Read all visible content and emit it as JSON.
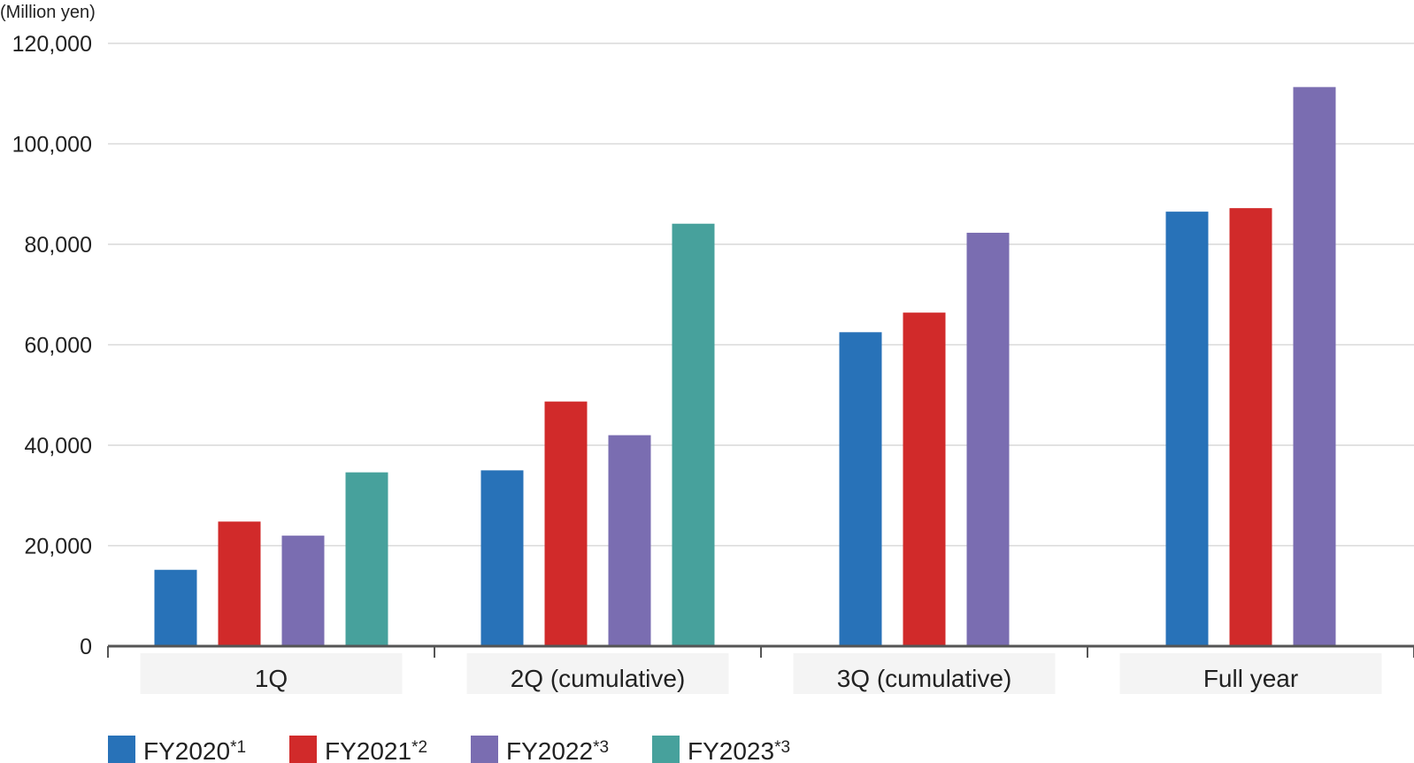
{
  "chart_data": {
    "type": "bar",
    "unit_label": "(Million yen)",
    "categories": [
      "1Q",
      "2Q (cumulative)",
      "3Q (cumulative)",
      "Full year"
    ],
    "ylim": [
      0,
      120000
    ],
    "yticks": [
      0,
      20000,
      40000,
      60000,
      80000,
      100000,
      120000
    ],
    "ytick_labels": [
      "0",
      "20,000",
      "40,000",
      "60,000",
      "80,000",
      "100,000",
      "120,000"
    ],
    "grid": true,
    "legend_position": "bottom-left",
    "series": [
      {
        "name": "FY2020",
        "note": "*1",
        "color": "#2872b8",
        "values": [
          15200,
          35000,
          62500,
          86500
        ]
      },
      {
        "name": "FY2021",
        "note": "*2",
        "color": "#d12a2a",
        "values": [
          24800,
          48700,
          66400,
          87200
        ]
      },
      {
        "name": "FY2022",
        "note": "*3",
        "color": "#7a6db1",
        "values": [
          22000,
          42000,
          82300,
          111300
        ]
      },
      {
        "name": "FY2023",
        "note": "*3",
        "color": "#47a19c",
        "values": [
          34600,
          84100,
          null,
          null
        ]
      }
    ]
  }
}
